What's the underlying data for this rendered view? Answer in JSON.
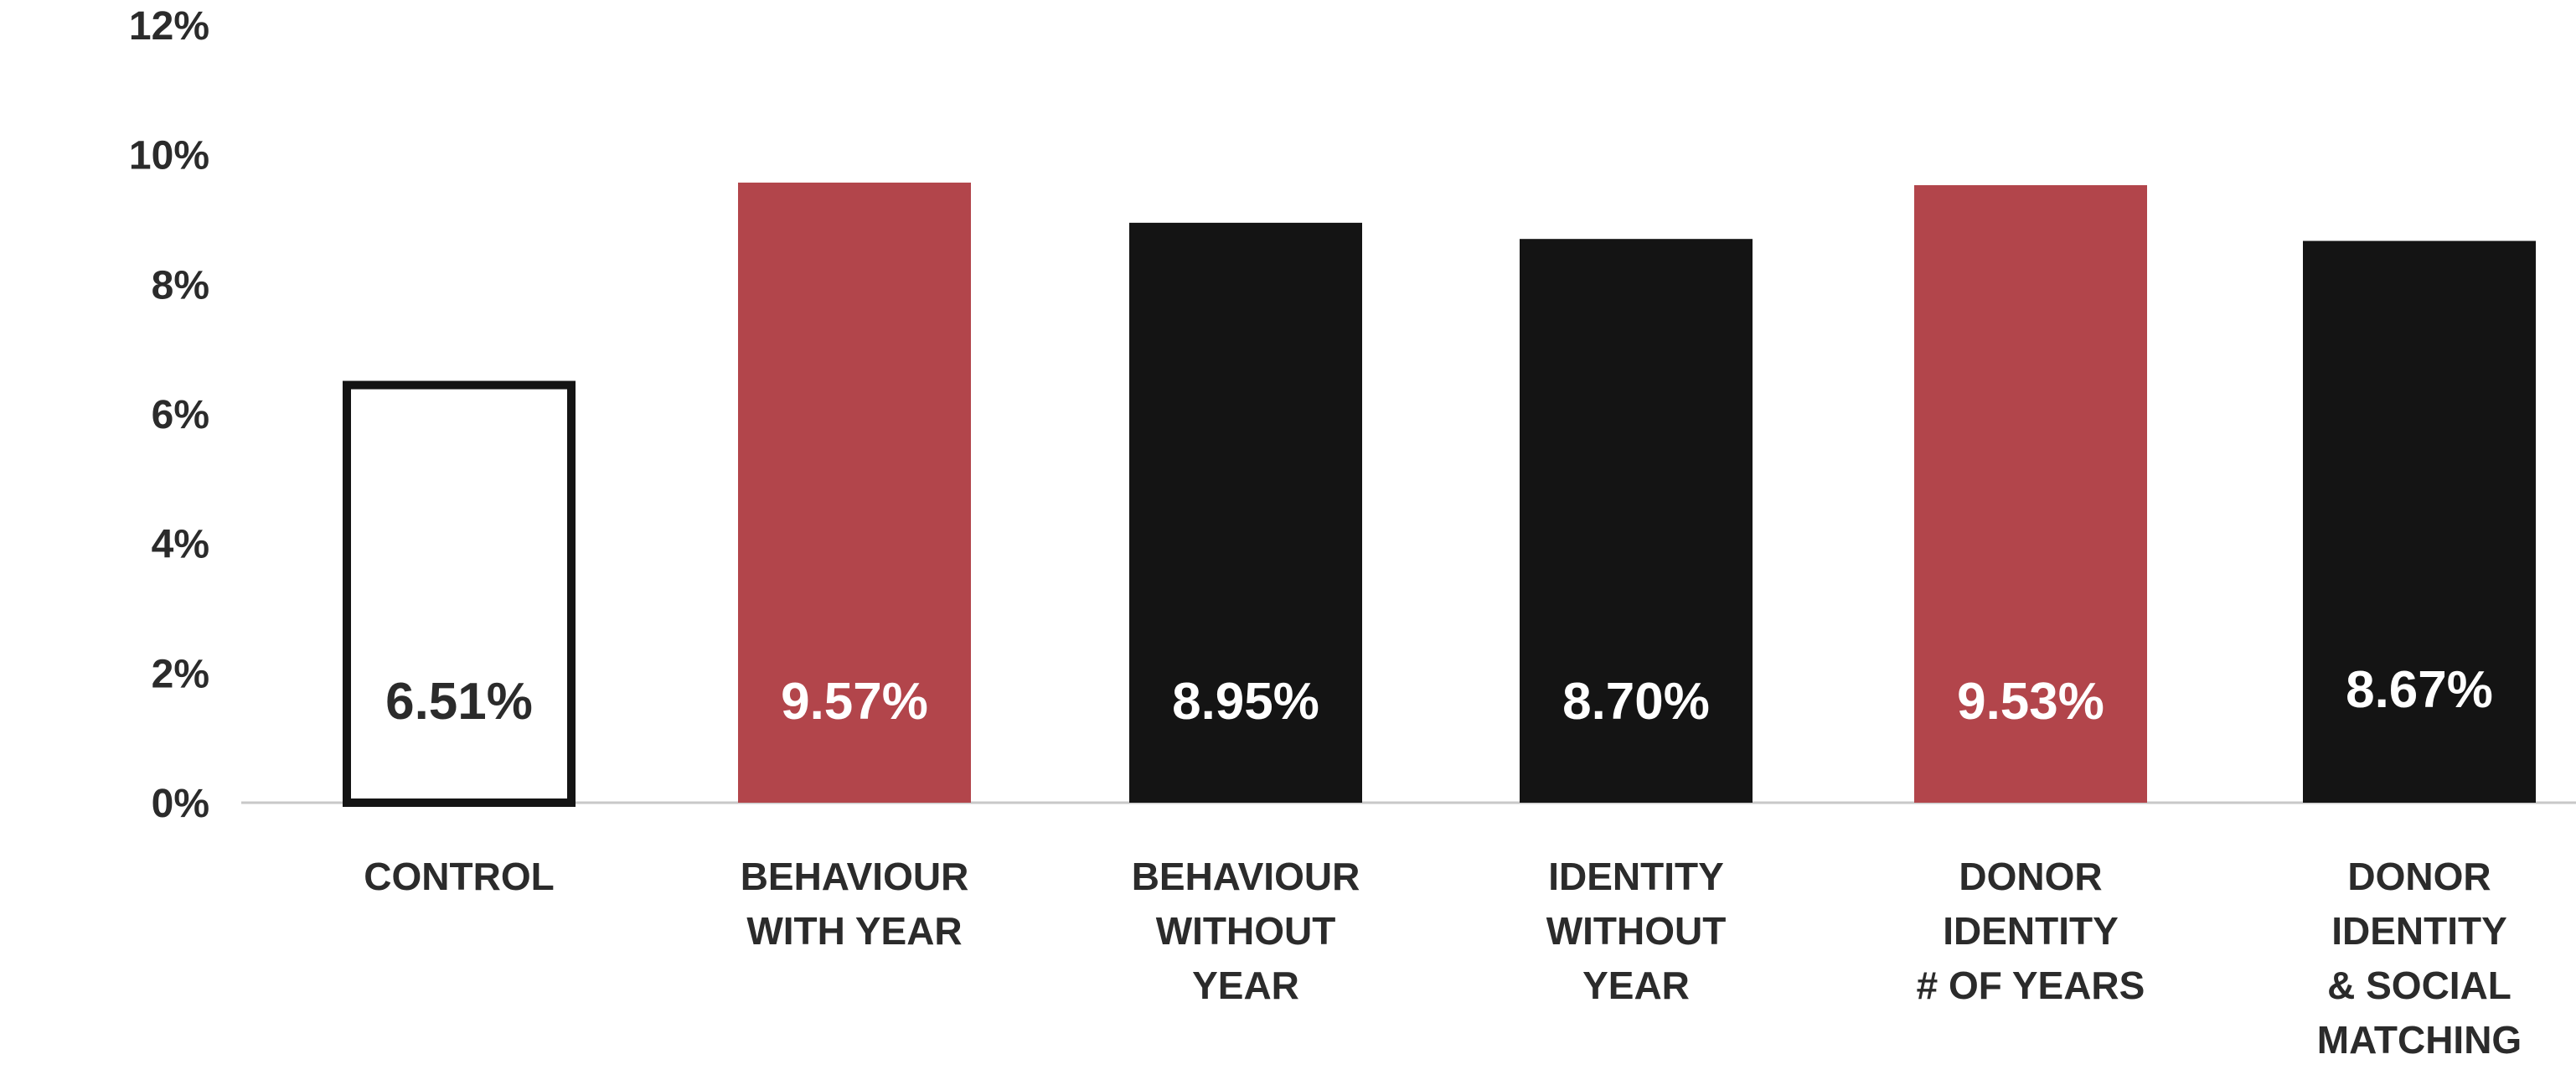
{
  "chart_data": {
    "type": "bar",
    "categories": [
      [
        "CONTROL"
      ],
      [
        "BEHAVIOUR",
        "WITH YEAR"
      ],
      [
        "BEHAVIOUR",
        "WITHOUT",
        "YEAR"
      ],
      [
        "IDENTITY",
        "WITHOUT",
        "YEAR"
      ],
      [
        "DONOR",
        "IDENTITY",
        "# OF YEARS"
      ],
      [
        "DONOR",
        "IDENTITY",
        "& SOCIAL",
        "MATCHING"
      ]
    ],
    "values": [
      6.51,
      9.57,
      8.95,
      8.7,
      9.53,
      8.67
    ],
    "value_labels": [
      "6.51%",
      "9.57%",
      "8.95%",
      "8.70%",
      "9.53%",
      "8.67%"
    ],
    "bar_styles": [
      "outline",
      "red",
      "black",
      "black",
      "red",
      "black"
    ],
    "y_ticks": [
      {
        "value": 0,
        "label": "0%"
      },
      {
        "value": 2,
        "label": "2%"
      },
      {
        "value": 4,
        "label": "4%"
      },
      {
        "value": 6,
        "label": "6%"
      },
      {
        "value": 8,
        "label": "8%"
      },
      {
        "value": 10,
        "label": "10%"
      },
      {
        "value": 12,
        "label": "12%"
      }
    ],
    "ylim": [
      0,
      12
    ],
    "grid": false,
    "colors": {
      "red": "#b2454b",
      "black": "#141414",
      "outline": "#141414",
      "axis": "#c8c8c8",
      "text": "#2b2b2b"
    }
  }
}
